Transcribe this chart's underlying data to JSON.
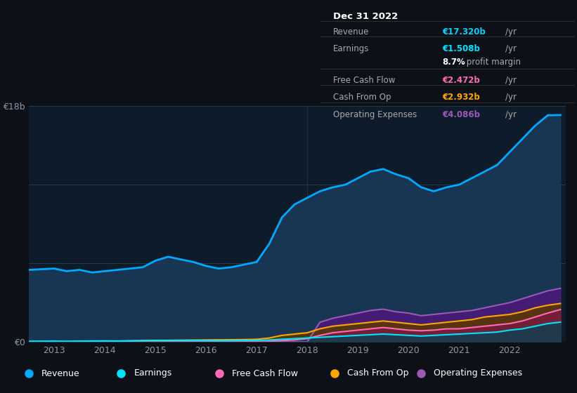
{
  "background_color": "#0d1117",
  "chart_bg_color": "#0d1b2a",
  "title_box": {
    "date": "Dec 31 2022",
    "rows": [
      {
        "label": "Revenue",
        "value": "€17.320b",
        "unit": "/yr",
        "value_color": "#00d4ff"
      },
      {
        "label": "Earnings",
        "value": "€1.508b",
        "unit": "/yr",
        "value_color": "#00e5ff"
      },
      {
        "label": "",
        "value": "8.7%",
        "unit": " profit margin",
        "value_color": "#ffffff"
      },
      {
        "label": "Free Cash Flow",
        "value": "€2.472b",
        "unit": "/yr",
        "value_color": "#ff69b4"
      },
      {
        "label": "Cash From Op",
        "value": "€2.932b",
        "unit": "/yr",
        "value_color": "#ffa500"
      },
      {
        "label": "Operating Expenses",
        "value": "€4.086b",
        "unit": "/yr",
        "value_color": "#9b59b6"
      }
    ]
  },
  "years": [
    2012.5,
    2013.0,
    2013.25,
    2013.5,
    2013.75,
    2014.0,
    2014.25,
    2014.5,
    2014.75,
    2015.0,
    2015.25,
    2015.5,
    2015.75,
    2016.0,
    2016.25,
    2016.5,
    2016.75,
    2017.0,
    2017.25,
    2017.5,
    2017.75,
    2018.0,
    2018.25,
    2018.5,
    2018.75,
    2019.0,
    2019.25,
    2019.5,
    2019.75,
    2020.0,
    2020.25,
    2020.5,
    2020.75,
    2021.0,
    2021.25,
    2021.5,
    2021.75,
    2022.0,
    2022.25,
    2022.5,
    2022.75,
    2023.0
  ],
  "revenue": [
    5.5,
    5.6,
    5.4,
    5.5,
    5.3,
    5.4,
    5.5,
    5.6,
    5.7,
    6.2,
    6.5,
    6.3,
    6.1,
    5.8,
    5.6,
    5.7,
    5.9,
    6.1,
    7.5,
    9.5,
    10.5,
    11.0,
    11.5,
    11.8,
    12.0,
    12.5,
    13.0,
    13.2,
    12.8,
    12.5,
    11.8,
    11.5,
    11.8,
    12.0,
    12.5,
    13.0,
    13.5,
    14.5,
    15.5,
    16.5,
    17.3,
    17.32
  ],
  "earnings": [
    0.05,
    0.06,
    0.05,
    0.06,
    0.07,
    0.08,
    0.07,
    0.08,
    0.09,
    0.1,
    0.09,
    0.1,
    0.11,
    0.1,
    0.09,
    0.1,
    0.11,
    0.12,
    0.15,
    0.2,
    0.25,
    0.3,
    0.35,
    0.4,
    0.45,
    0.5,
    0.55,
    0.6,
    0.55,
    0.5,
    0.45,
    0.5,
    0.55,
    0.6,
    0.65,
    0.7,
    0.75,
    0.9,
    1.0,
    1.2,
    1.4,
    1.508
  ],
  "free_cash_flow": [
    0.0,
    0.0,
    0.0,
    0.0,
    0.0,
    0.0,
    0.0,
    0.0,
    0.0,
    0.0,
    0.0,
    0.0,
    0.0,
    0.0,
    0.0,
    0.0,
    0.0,
    0.02,
    0.05,
    0.1,
    0.15,
    0.25,
    0.5,
    0.7,
    0.8,
    0.9,
    1.0,
    1.1,
    1.0,
    0.9,
    0.85,
    0.9,
    1.0,
    1.0,
    1.1,
    1.2,
    1.3,
    1.4,
    1.6,
    1.9,
    2.2,
    2.472
  ],
  "cash_from_op": [
    0.0,
    0.01,
    0.01,
    0.02,
    0.03,
    0.05,
    0.06,
    0.08,
    0.1,
    0.12,
    0.12,
    0.13,
    0.14,
    0.15,
    0.16,
    0.17,
    0.18,
    0.2,
    0.3,
    0.5,
    0.6,
    0.7,
    1.0,
    1.2,
    1.3,
    1.4,
    1.5,
    1.6,
    1.5,
    1.4,
    1.3,
    1.4,
    1.5,
    1.6,
    1.7,
    1.9,
    2.0,
    2.1,
    2.3,
    2.6,
    2.8,
    2.932
  ],
  "operating_expenses": [
    0.0,
    0.0,
    0.0,
    0.0,
    0.0,
    0.0,
    0.0,
    0.0,
    0.0,
    0.0,
    0.0,
    0.0,
    0.0,
    0.0,
    0.0,
    0.0,
    0.0,
    0.0,
    0.0,
    0.0,
    0.0,
    0.0,
    1.5,
    1.8,
    2.0,
    2.2,
    2.4,
    2.5,
    2.3,
    2.2,
    2.0,
    2.1,
    2.2,
    2.3,
    2.4,
    2.6,
    2.8,
    3.0,
    3.3,
    3.6,
    3.9,
    4.086
  ],
  "revenue_color": "#00aaff",
  "revenue_fill": "#1a3a5c",
  "earnings_color": "#00e5ff",
  "fcf_color": "#ff69b4",
  "cashop_color": "#ffa500",
  "opex_color": "#9b59b6",
  "ylim": [
    0,
    18
  ],
  "xticks": [
    2013,
    2014,
    2015,
    2016,
    2017,
    2018,
    2019,
    2020,
    2021,
    2022
  ],
  "legend_items": [
    {
      "label": "Revenue",
      "color": "#00aaff"
    },
    {
      "label": "Earnings",
      "color": "#00e5ff"
    },
    {
      "label": "Free Cash Flow",
      "color": "#ff69b4"
    },
    {
      "label": "Cash From Op",
      "color": "#ffa500"
    },
    {
      "label": "Operating Expenses",
      "color": "#9b59b6"
    }
  ]
}
